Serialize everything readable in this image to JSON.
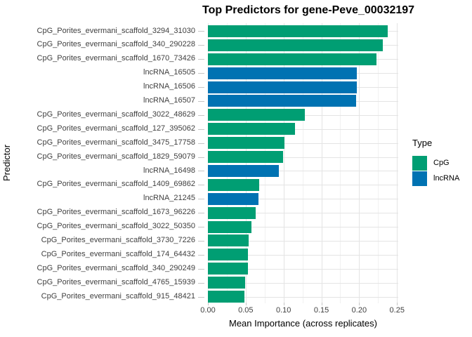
{
  "colors": {
    "CpG": "#009E73",
    "lncRNA": "#0072B2",
    "grid_major": "#E4E4E4",
    "grid_minor": "#F1F1F1",
    "axis_tick": "#C6C6C6",
    "tick_text": "#404040",
    "background": "#FFFFFF"
  },
  "chart_data": {
    "type": "bar",
    "orientation": "horizontal",
    "title": "Top Predictors for gene-Peve_00032197",
    "xlabel": "Mean Importance (across replicates)",
    "ylabel": "Predictor",
    "xlim": [
      0,
      0.251
    ],
    "grid": "major and minor vertical, major horizontal per category",
    "x_tick_values": [
      0,
      0.05,
      0.1,
      0.15,
      0.2,
      0.25
    ],
    "x_tick_labels": [
      "0.00",
      "0.05",
      "0.10",
      "0.15",
      "0.20",
      "0.25"
    ],
    "x_grid_minor": [
      0.025,
      0.075,
      0.125,
      0.175,
      0.225
    ],
    "legend": {
      "title": "Type",
      "position": "right",
      "entries": [
        {
          "label": "CpG",
          "color": "#009E73"
        },
        {
          "label": "lncRNA",
          "color": "#0072B2"
        }
      ]
    },
    "bars": [
      {
        "label": "CpG_Porites_evermani_scaffold_3294_31030",
        "type": "CpG",
        "value": 0.238
      },
      {
        "label": "CpG_Porites_evermani_scaffold_340_290228",
        "type": "CpG",
        "value": 0.231
      },
      {
        "label": "CpG_Porites_evermani_scaffold_1670_73426",
        "type": "CpG",
        "value": 0.223
      },
      {
        "label": "lncRNA_16505",
        "type": "lncRNA",
        "value": 0.197
      },
      {
        "label": "lncRNA_16506",
        "type": "lncRNA",
        "value": 0.197
      },
      {
        "label": "lncRNA_16507",
        "type": "lncRNA",
        "value": 0.196
      },
      {
        "label": "CpG_Porites_evermani_scaffold_3022_48629",
        "type": "CpG",
        "value": 0.128
      },
      {
        "label": "CpG_Porites_evermani_scaffold_127_395062",
        "type": "CpG",
        "value": 0.115
      },
      {
        "label": "CpG_Porites_evermani_scaffold_3475_17758",
        "type": "CpG",
        "value": 0.101
      },
      {
        "label": "CpG_Porites_evermani_scaffold_1829_59079",
        "type": "CpG",
        "value": 0.099
      },
      {
        "label": "lncRNA_16498",
        "type": "lncRNA",
        "value": 0.094
      },
      {
        "label": "CpG_Porites_evermani_scaffold_1409_69862",
        "type": "CpG",
        "value": 0.068
      },
      {
        "label": "lncRNA_21245",
        "type": "lncRNA",
        "value": 0.067
      },
      {
        "label": "CpG_Porites_evermani_scaffold_1673_96226",
        "type": "CpG",
        "value": 0.063
      },
      {
        "label": "CpG_Porites_evermani_scaffold_3022_50350",
        "type": "CpG",
        "value": 0.058
      },
      {
        "label": "CpG_Porites_evermani_scaffold_3730_7226",
        "type": "CpG",
        "value": 0.054
      },
      {
        "label": "CpG_Porites_evermani_scaffold_174_64432",
        "type": "CpG",
        "value": 0.053
      },
      {
        "label": "CpG_Porites_evermani_scaffold_340_290249",
        "type": "CpG",
        "value": 0.053
      },
      {
        "label": "CpG_Porites_evermani_scaffold_4765_15939",
        "type": "CpG",
        "value": 0.049
      },
      {
        "label": "CpG_Porites_evermani_scaffold_915_48421",
        "type": "CpG",
        "value": 0.048
      }
    ]
  }
}
